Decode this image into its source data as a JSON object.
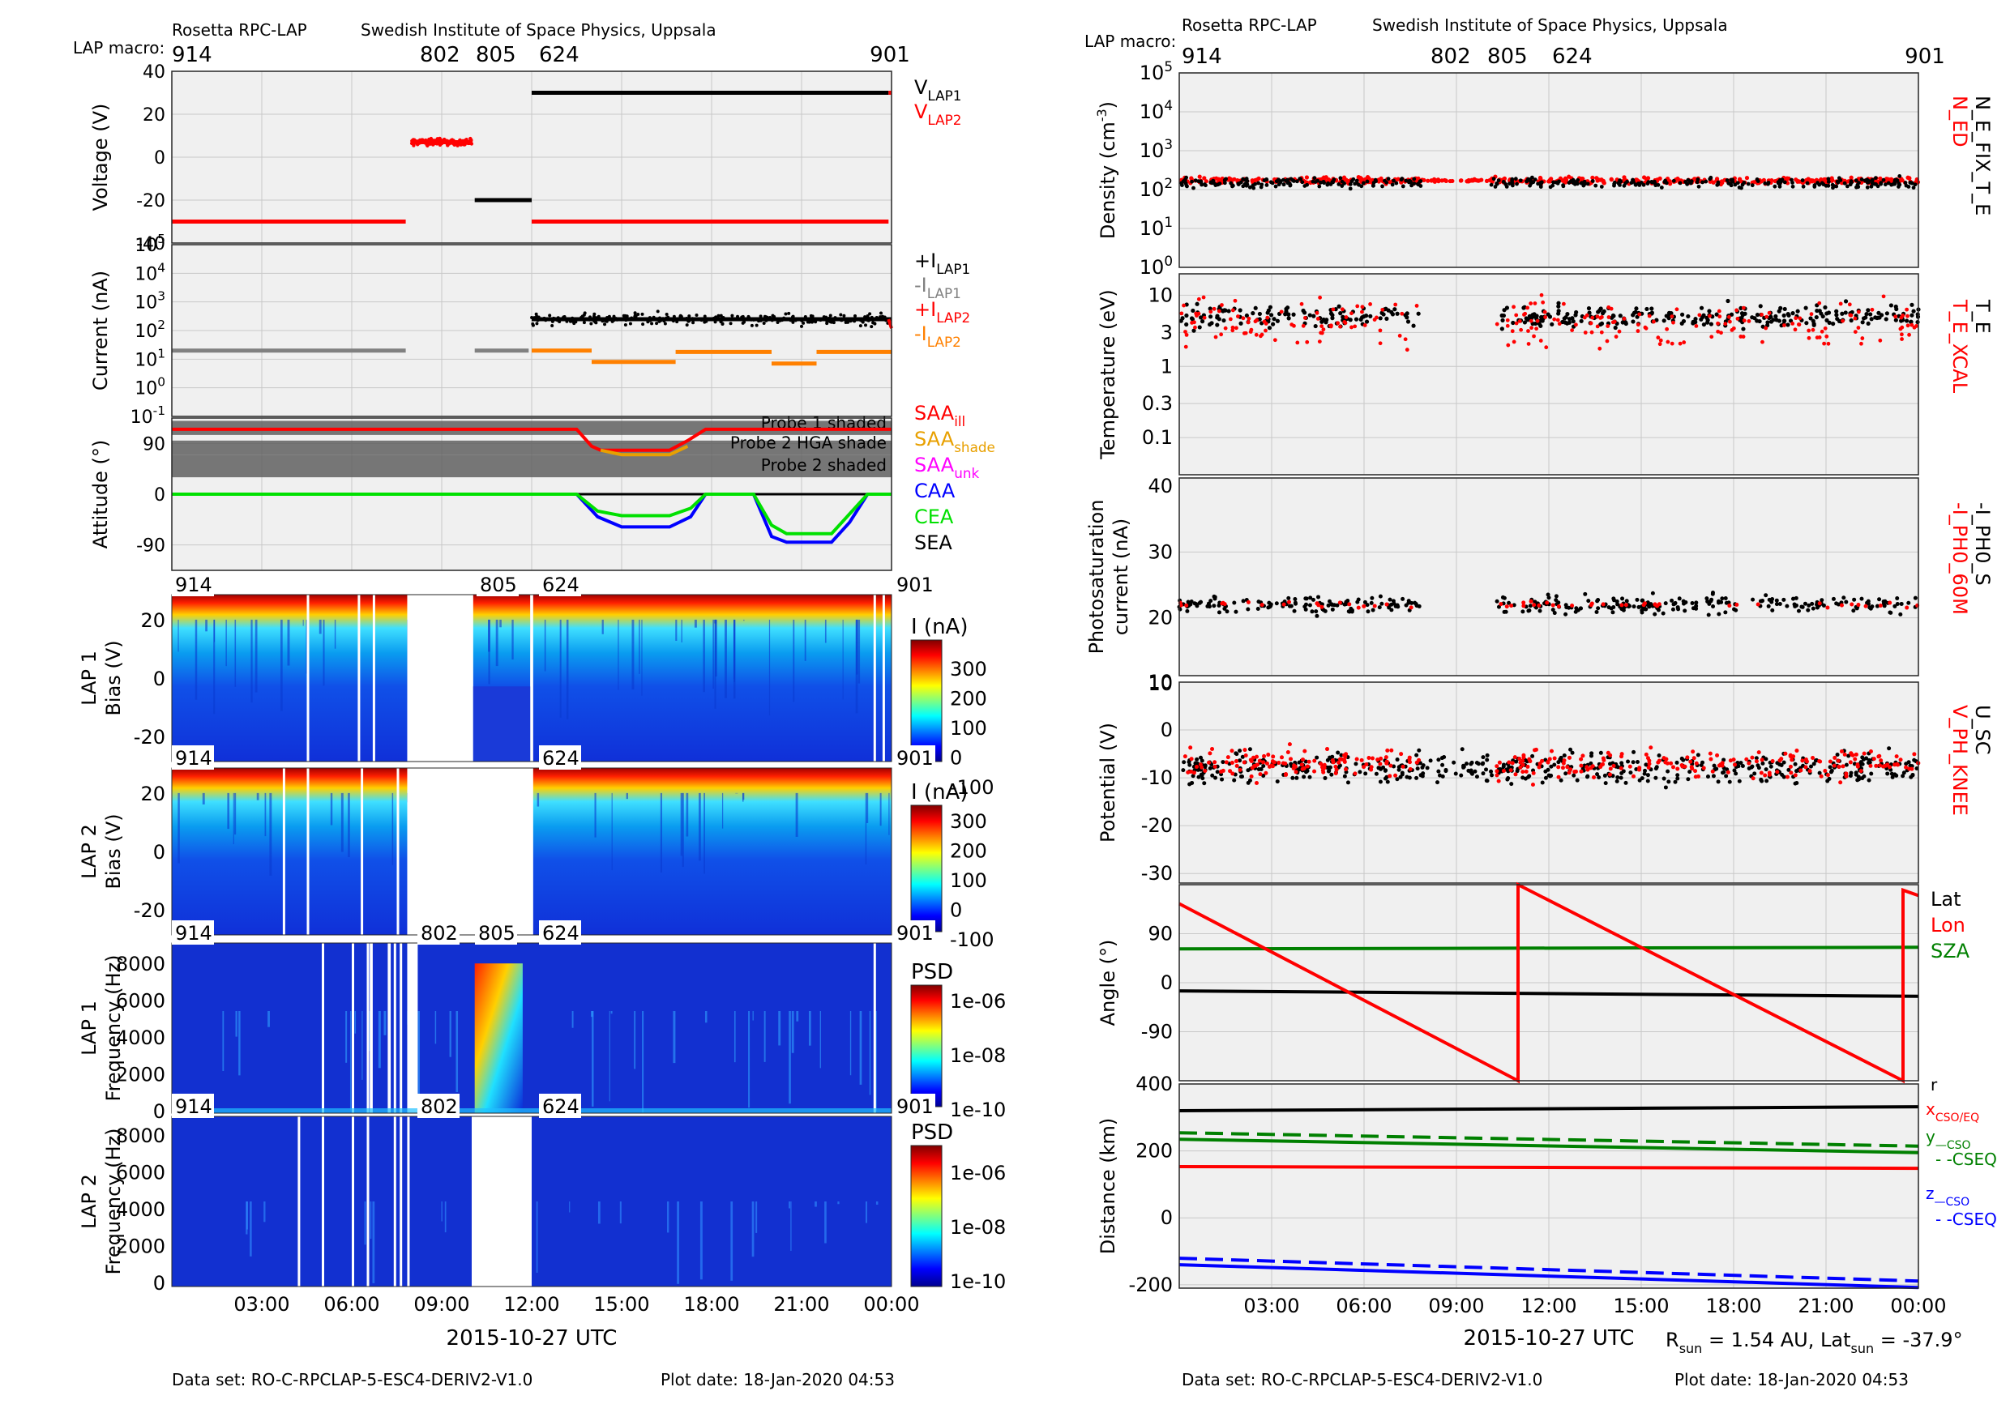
{
  "left": {
    "header": {
      "instrument": "Rosetta RPC-LAP",
      "institute": "Swedish Institute of Space Physics, Uppsala",
      "macro_label": "LAP macro:"
    },
    "macros": [
      "914",
      "802",
      "805",
      "624",
      "901"
    ],
    "footer": {
      "dataset": "Data set: RO-C-RPCLAP-5-ESC4-DERIV2-V1.0",
      "plotdate": "Plot date: 18-Jan-2020 04:53"
    },
    "xlabel": "2015-10-27 UTC",
    "xticks": [
      "03:00",
      "06:00",
      "09:00",
      "12:00",
      "15:00",
      "18:00",
      "21:00",
      "00:00"
    ]
  },
  "right": {
    "header": {
      "instrument": "Rosetta RPC-LAP",
      "institute": "Swedish Institute of Space Physics, Uppsala",
      "macro_label": "LAP macro:"
    },
    "macros": [
      "914",
      "802",
      "805",
      "624",
      "901"
    ],
    "footer": {
      "dataset": "Data set: RO-C-RPCLAP-5-ESC4-DERIV2-V1.0",
      "plotdate": "Plot date: 18-Jan-2020 04:53"
    },
    "xlabel": "2015-10-27 UTC",
    "xticks": [
      "03:00",
      "06:00",
      "09:00",
      "12:00",
      "15:00",
      "18:00",
      "21:00",
      "00:00"
    ],
    "rsun": "R_sun = 1.54 AU, Lat_sun = -37.9°"
  },
  "colors": {
    "lap1": "#000000",
    "lap2": "#ff0000",
    "gray": "#808080",
    "orange": "#ff8000",
    "saa_shade": "#e8a000",
    "saa_unk": "#ff00ff",
    "caa": "#0000ff",
    "cea": "#00e000",
    "green": "#008000",
    "panel_bg": "#f0f0f0"
  },
  "chart_data": [
    {
      "id": "voltage",
      "type": "scatter",
      "ylabel": "Voltage (V)",
      "yticks": [
        "40",
        "20",
        "0",
        "-20",
        "-40"
      ],
      "ylim": [
        -40,
        40
      ],
      "legend": [
        {
          "label": "V_LAP1",
          "color": "#000000"
        },
        {
          "label": "V_LAP2",
          "color": "#ff0000"
        }
      ],
      "series": [
        {
          "name": "V_LAP1",
          "segments": [
            {
              "t0": 10.1,
              "t1": 12.0,
              "v": -20
            },
            {
              "t0": 12.0,
              "t1": 23.9,
              "v": 30
            }
          ]
        },
        {
          "name": "V_LAP2",
          "segments": [
            {
              "t0": 0,
              "t1": 7.8,
              "v": -30
            },
            {
              "t0": 8.0,
              "t1": 10.0,
              "v": 7
            },
            {
              "t0": 12.0,
              "t1": 23.9,
              "v": -30
            },
            {
              "t0": 23.9,
              "t1": 24,
              "v": 30
            }
          ]
        }
      ]
    },
    {
      "id": "current",
      "type": "scatter",
      "ylabel": "Current (nA)",
      "yscale": "log",
      "yticks": [
        "10^5",
        "10^4",
        "10^3",
        "10^2",
        "10^1",
        "10^0",
        "10^-1"
      ],
      "legend": [
        {
          "label": "+I_LAP1",
          "color": "#000000"
        },
        {
          "label": "-I_LAP1",
          "color": "#808080"
        },
        {
          "label": "+I_LAP2",
          "color": "#ff0000"
        },
        {
          "label": "-I_LAP2",
          "color": "#ff8000"
        }
      ],
      "series": [
        {
          "name": "-I_LAP1",
          "segments": [
            {
              "t0": 0,
              "t1": 7.8,
              "v": 20
            },
            {
              "t0": 10.1,
              "t1": 11.9,
              "v": 20
            }
          ]
        },
        {
          "name": "+I_LAP1",
          "segments": [
            {
              "t0": 12.0,
              "t1": 24,
              "v": 250
            }
          ]
        },
        {
          "name": "-I_LAP2",
          "segments": [
            {
              "t0": 12.0,
              "t1": 14.0,
              "v": 20
            },
            {
              "t0": 14.0,
              "t1": 16.8,
              "v": 8
            },
            {
              "t0": 16.8,
              "t1": 20.0,
              "v": 18
            },
            {
              "t0": 20.0,
              "t1": 21.5,
              "v": 7
            },
            {
              "t0": 21.5,
              "t1": 24,
              "v": 18
            }
          ]
        }
      ]
    },
    {
      "id": "attitude",
      "type": "line",
      "ylabel": "Attitude (°)",
      "yticks": [
        "90",
        "0",
        "-90"
      ],
      "ylim": [
        -135,
        135
      ],
      "bands": [
        {
          "label": "Probe 1 shaded",
          "y0": 130,
          "y1": 105
        },
        {
          "label": "Probe 2 HGA shade",
          "y0": 95,
          "y1": 70
        },
        {
          "label": "Probe 2 shaded",
          "y0": 70,
          "y1": 30
        }
      ],
      "legend": [
        {
          "label": "SAA_ill",
          "color": "#ff0000"
        },
        {
          "label": "SAA_shade",
          "color": "#e8a000"
        },
        {
          "label": "SAA_unk",
          "color": "#ff00ff"
        },
        {
          "label": "CAA",
          "color": "#0000ff"
        },
        {
          "label": "CEA",
          "color": "#00e000"
        },
        {
          "label": "SEA",
          "color": "#000000"
        }
      ]
    },
    {
      "id": "lap1bias",
      "type": "heatmap",
      "ylabel": "LAP 1 Bias (V)",
      "yticks": [
        "20",
        "0",
        "-20"
      ],
      "cbar_label": "I (nA)",
      "cbar_ticks": [
        "300",
        "200",
        "100",
        "0",
        "-100"
      ],
      "macros": [
        "914",
        "805",
        "624",
        "901"
      ],
      "gaps": [
        [
          7.9,
          10.0
        ],
        [
          11.95,
          12.05
        ]
      ]
    },
    {
      "id": "lap2bias",
      "type": "heatmap",
      "ylabel": "LAP 2 Bias (V)",
      "yticks": [
        "20",
        "0",
        "-20"
      ],
      "cbar_label": "I (nA)",
      "cbar_ticks": [
        "300",
        "200",
        "100",
        "0",
        "-100"
      ],
      "macros": [
        "914",
        "624",
        "901"
      ],
      "gaps": [
        [
          7.9,
          12.0
        ]
      ]
    },
    {
      "id": "lap1psd",
      "type": "heatmap",
      "ylabel": "LAP 1 Frequency (Hz)",
      "yticks": [
        "8000",
        "6000",
        "4000",
        "2000",
        "0"
      ],
      "cbar_label": "PSD",
      "cbar_ticks": [
        "1e-06",
        "1e-08",
        "1e-10"
      ],
      "macros": [
        "914",
        "802",
        "805",
        "624",
        "901"
      ]
    },
    {
      "id": "lap2psd",
      "type": "heatmap",
      "ylabel": "LAP 2 Frequency (Hz)",
      "yticks": [
        "8000",
        "6000",
        "4000",
        "2000",
        "0"
      ],
      "cbar_label": "PSD",
      "cbar_ticks": [
        "1e-06",
        "1e-08",
        "1e-10"
      ],
      "macros": [
        "914",
        "802",
        "624",
        "901"
      ],
      "gaps": [
        [
          10.0,
          12.0
        ]
      ]
    },
    {
      "id": "density",
      "type": "scatter",
      "ylabel": "Density (cm^-3)",
      "yscale": "log",
      "yticks": [
        "10^5",
        "10^4",
        "10^3",
        "10^2",
        "10^1",
        "10^0"
      ],
      "legend": [
        {
          "label": "N_ED",
          "color": "#ff0000"
        },
        {
          "label": "N_E_FIX_T_E",
          "color": "#000000"
        }
      ],
      "series": [
        {
          "name": "N_ED",
          "mean": 170
        },
        {
          "name": "N_E_FIX_T_E",
          "mean": 150
        }
      ]
    },
    {
      "id": "temperature",
      "type": "scatter",
      "ylabel": "Temperature (eV)",
      "yscale": "log",
      "yticks": [
        "10",
        "3",
        "1",
        "0.3",
        "0.1"
      ],
      "legend": [
        {
          "label": "T_E_XCAL",
          "color": "#ff0000"
        },
        {
          "label": "T_E",
          "color": "#000000"
        }
      ],
      "series": [
        {
          "name": "T_E",
          "mean": 5
        },
        {
          "name": "T_E_XCAL",
          "mean": 4
        }
      ]
    },
    {
      "id": "photosat",
      "type": "scatter",
      "ylabel": "Photosaturation current (nA)",
      "yticks": [
        "40",
        "30",
        "20",
        "10"
      ],
      "ylim": [
        10,
        40
      ],
      "legend": [
        {
          "label": "-I_PH0_60M",
          "color": "#ff0000"
        },
        {
          "label": "-I_PH0_S",
          "color": "#000000"
        }
      ],
      "series": [
        {
          "name": "-I_PH0_S",
          "mean": 22
        },
        {
          "name": "-I_PH0_60M",
          "mean": 22
        }
      ]
    },
    {
      "id": "potential",
      "type": "scatter",
      "ylabel": "Potential (V)",
      "yticks": [
        "10",
        "0",
        "-10",
        "-20",
        "-30"
      ],
      "ylim": [
        -32,
        10
      ],
      "legend": [
        {
          "label": "V_PH_KNEE",
          "color": "#ff0000"
        },
        {
          "label": "U_SC",
          "color": "#000000"
        }
      ],
      "series": [
        {
          "name": "U_SC",
          "mean": -8
        },
        {
          "name": "V_PH_KNEE",
          "mean": -7
        }
      ]
    },
    {
      "id": "angle",
      "type": "line",
      "ylabel": "Angle (°)",
      "yticks": [
        "90",
        "0",
        "-90"
      ],
      "ylim": [
        -180,
        180
      ],
      "legend": [
        {
          "label": "Lat",
          "color": "#000000"
        },
        {
          "label": "Lon",
          "color": "#ff0000"
        },
        {
          "label": "SZA",
          "color": "#008000"
        }
      ],
      "series": [
        {
          "name": "Lat",
          "x": [
            0,
            24
          ],
          "y": [
            -15,
            -25
          ]
        },
        {
          "name": "SZA",
          "x": [
            0,
            24
          ],
          "y": [
            62,
            65
          ]
        },
        {
          "name": "Lon",
          "x": [
            0,
            11,
            11,
            23.5,
            23.5,
            24
          ],
          "y": [
            145,
            -180,
            180,
            -180,
            170,
            160
          ]
        }
      ]
    },
    {
      "id": "distance",
      "type": "line",
      "ylabel": "Distance (km)",
      "yticks": [
        "400",
        "200",
        "0",
        "-200"
      ],
      "ylim": [
        -210,
        400
      ],
      "legend": [
        {
          "label": "r",
          "color": "#000000"
        },
        {
          "label": "x_CSO/EQ",
          "color": "#ff0000"
        },
        {
          "label": "y_—CSO",
          "color": "#008000"
        },
        {
          "label": "- -CSEQ",
          "color": "#008000"
        },
        {
          "label": "z_—CSO",
          "color": "#0000ff"
        },
        {
          "label": "- -CSEQ",
          "color": "#0000ff"
        }
      ],
      "series": [
        {
          "name": "r",
          "x": [
            0,
            24
          ],
          "y": [
            320,
            332
          ]
        },
        {
          "name": "x",
          "x": [
            0,
            24
          ],
          "y": [
            153,
            148
          ]
        },
        {
          "name": "y",
          "x": [
            0,
            24
          ],
          "y": [
            235,
            195
          ]
        },
        {
          "name": "z",
          "x": [
            0,
            24
          ],
          "y": [
            -140,
            -208
          ]
        }
      ]
    }
  ]
}
